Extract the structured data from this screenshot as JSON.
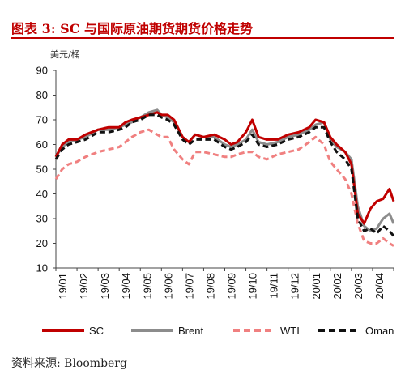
{
  "title": "图表 3:  SC 与国际原油期货期货价格走势",
  "unit_label": "美元/桶",
  "source": "资料来源:  Bloomberg",
  "chart_data": {
    "type": "line",
    "title": "",
    "xlabel": "",
    "ylabel": "美元/桶",
    "ylim": [
      10,
      90
    ],
    "yticks": [
      10,
      20,
      30,
      40,
      50,
      60,
      70,
      80,
      90
    ],
    "xlim": [
      0,
      16
    ],
    "xtick_labels": [
      "19/01",
      "19/02",
      "19/03",
      "19/04",
      "19/05",
      "19/06",
      "19/07",
      "19/08",
      "19/09",
      "19/10",
      "19/11",
      "19/12",
      "20/01",
      "20/02",
      "20/03",
      "20/04"
    ],
    "legend_position": "bottom",
    "grid": false,
    "series": [
      {
        "name": "SC",
        "color": "#c00000",
        "dash": "solid",
        "x": [
          0,
          0.3,
          0.6,
          1,
          1.4,
          2,
          2.5,
          3,
          3.3,
          3.6,
          4,
          4.4,
          4.8,
          5,
          5.3,
          5.6,
          6,
          6.3,
          6.6,
          7,
          7.5,
          8,
          8.3,
          8.6,
          9,
          9.3,
          9.6,
          10,
          10.5,
          11,
          11.5,
          12,
          12.3,
          12.7,
          13,
          13.3,
          13.7,
          14,
          14.3,
          14.6,
          14.9,
          15.2,
          15.5,
          15.8,
          16
        ],
        "y": [
          55,
          60,
          62,
          62,
          64,
          66,
          67,
          67,
          69,
          70,
          71,
          72,
          73,
          72,
          72,
          70,
          63,
          61,
          64,
          63,
          64,
          62,
          60,
          61,
          65,
          70,
          63,
          62,
          62,
          64,
          65,
          67,
          70,
          69,
          63,
          60,
          57,
          52,
          32,
          28,
          34,
          37,
          38,
          42,
          37
        ]
      },
      {
        "name": "Brent",
        "color": "#8c8c8c",
        "dash": "solid",
        "x": [
          0,
          0.3,
          0.6,
          1,
          1.4,
          2,
          2.5,
          3,
          3.3,
          3.6,
          4,
          4.4,
          4.8,
          5,
          5.3,
          5.6,
          6,
          6.3,
          6.6,
          7,
          7.5,
          8,
          8.3,
          8.6,
          9,
          9.3,
          9.6,
          10,
          10.5,
          11,
          11.5,
          12,
          12.3,
          12.7,
          13,
          13.3,
          13.7,
          14,
          14.3,
          14.6,
          14.9,
          15.2,
          15.5,
          15.8,
          16
        ],
        "y": [
          55,
          59,
          61,
          62,
          63,
          66,
          66,
          67,
          68,
          69,
          71,
          73,
          74,
          72,
          71,
          69,
          63,
          61,
          64,
          63,
          63,
          60,
          59,
          60,
          62,
          66,
          61,
          60,
          61,
          63,
          64,
          66,
          68,
          69,
          62,
          59,
          57,
          54,
          35,
          27,
          25,
          26,
          30,
          32,
          28
        ]
      },
      {
        "name": "WTI",
        "color": "#f08080",
        "dash": "dashed",
        "x": [
          0,
          0.3,
          0.6,
          1,
          1.4,
          2,
          2.5,
          3,
          3.3,
          3.6,
          4,
          4.4,
          4.8,
          5,
          5.3,
          5.6,
          6,
          6.3,
          6.6,
          7,
          7.5,
          8,
          8.3,
          8.6,
          9,
          9.3,
          9.6,
          10,
          10.5,
          11,
          11.5,
          12,
          12.3,
          12.7,
          13,
          13.3,
          13.7,
          14,
          14.3,
          14.6,
          14.9,
          15.2,
          15.5,
          15.8,
          16
        ],
        "y": [
          46,
          50,
          52,
          53,
          55,
          57,
          58,
          59,
          61,
          63,
          65,
          66,
          64,
          63,
          63,
          58,
          54,
          52,
          57,
          57,
          56,
          55,
          55,
          56,
          57,
          57,
          55,
          54,
          56,
          57,
          58,
          61,
          63,
          60,
          53,
          50,
          46,
          40,
          28,
          21,
          20,
          20,
          22,
          20,
          19
        ]
      },
      {
        "name": "Oman",
        "color": "#111111",
        "dash": "dashed",
        "x": [
          0,
          0.3,
          0.6,
          1,
          1.4,
          2,
          2.5,
          3,
          3.3,
          3.6,
          4,
          4.4,
          4.8,
          5,
          5.3,
          5.6,
          6,
          6.3,
          6.6,
          7,
          7.5,
          8,
          8.3,
          8.6,
          9,
          9.3,
          9.6,
          10,
          10.5,
          11,
          11.5,
          12,
          12.3,
          12.7,
          13,
          13.3,
          13.7,
          14,
          14.3,
          14.6,
          14.9,
          15.2,
          15.5,
          15.8,
          16
        ],
        "y": [
          54,
          58,
          60,
          61,
          62,
          65,
          65,
          66,
          67,
          69,
          70,
          72,
          72,
          71,
          70,
          68,
          62,
          60,
          62,
          62,
          62,
          59,
          58,
          59,
          61,
          64,
          60,
          59,
          60,
          62,
          63,
          65,
          67,
          67,
          61,
          57,
          54,
          50,
          30,
          25,
          26,
          24,
          27,
          25,
          23
        ]
      }
    ]
  }
}
